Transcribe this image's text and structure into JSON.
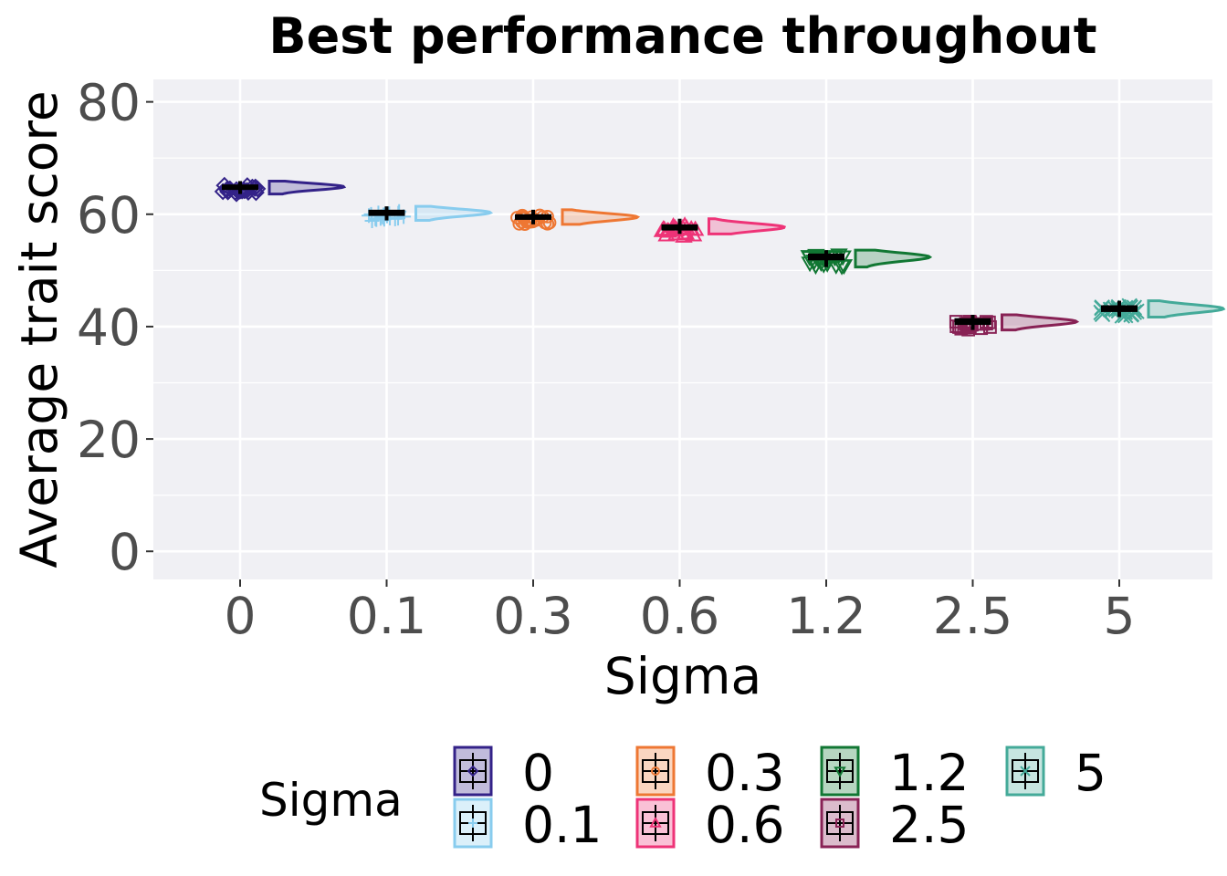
{
  "chart_data": {
    "type": "raincloud",
    "title": "Best performance throughout",
    "xlabel": "Sigma",
    "ylabel": "Average trait score",
    "ylim": [
      -5,
      84
    ],
    "yticks": [
      0,
      20,
      40,
      60,
      80
    ],
    "grid": true,
    "legend": {
      "title": "Sigma",
      "position": "bottom"
    },
    "categories": [
      "0",
      "0.1",
      "0.3",
      "0.6",
      "1.2",
      "2.5",
      "5"
    ],
    "series": [
      {
        "name": "0",
        "median": 64.9,
        "q1": 64.4,
        "q3": 65.3,
        "min": 63.6,
        "max": 65.9,
        "color": "#332288",
        "shape": "diamond"
      },
      {
        "name": "0.1",
        "median": 60.3,
        "q1": 59.7,
        "q3": 60.8,
        "min": 58.9,
        "max": 61.4,
        "color": "#88CCEE",
        "shape": "plus"
      },
      {
        "name": "0.3",
        "median": 59.5,
        "q1": 59.0,
        "q3": 60.0,
        "min": 58.2,
        "max": 60.8,
        "color": "#EE7733",
        "shape": "circle"
      },
      {
        "name": "0.6",
        "median": 57.7,
        "q1": 57.1,
        "q3": 58.2,
        "min": 56.5,
        "max": 59.2,
        "color": "#EE3377",
        "shape": "triangle"
      },
      {
        "name": "1.2",
        "median": 52.4,
        "q1": 51.8,
        "q3": 53.0,
        "min": 50.6,
        "max": 53.6,
        "color": "#117733",
        "shape": "triangle-down"
      },
      {
        "name": "2.5",
        "median": 40.9,
        "q1": 40.3,
        "q3": 41.5,
        "min": 39.4,
        "max": 42.1,
        "color": "#882255",
        "shape": "square"
      },
      {
        "name": "5",
        "median": 43.2,
        "q1": 42.6,
        "q3": 43.8,
        "min": 41.7,
        "max": 44.6,
        "color": "#44AA99",
        "shape": "cross"
      }
    ]
  }
}
